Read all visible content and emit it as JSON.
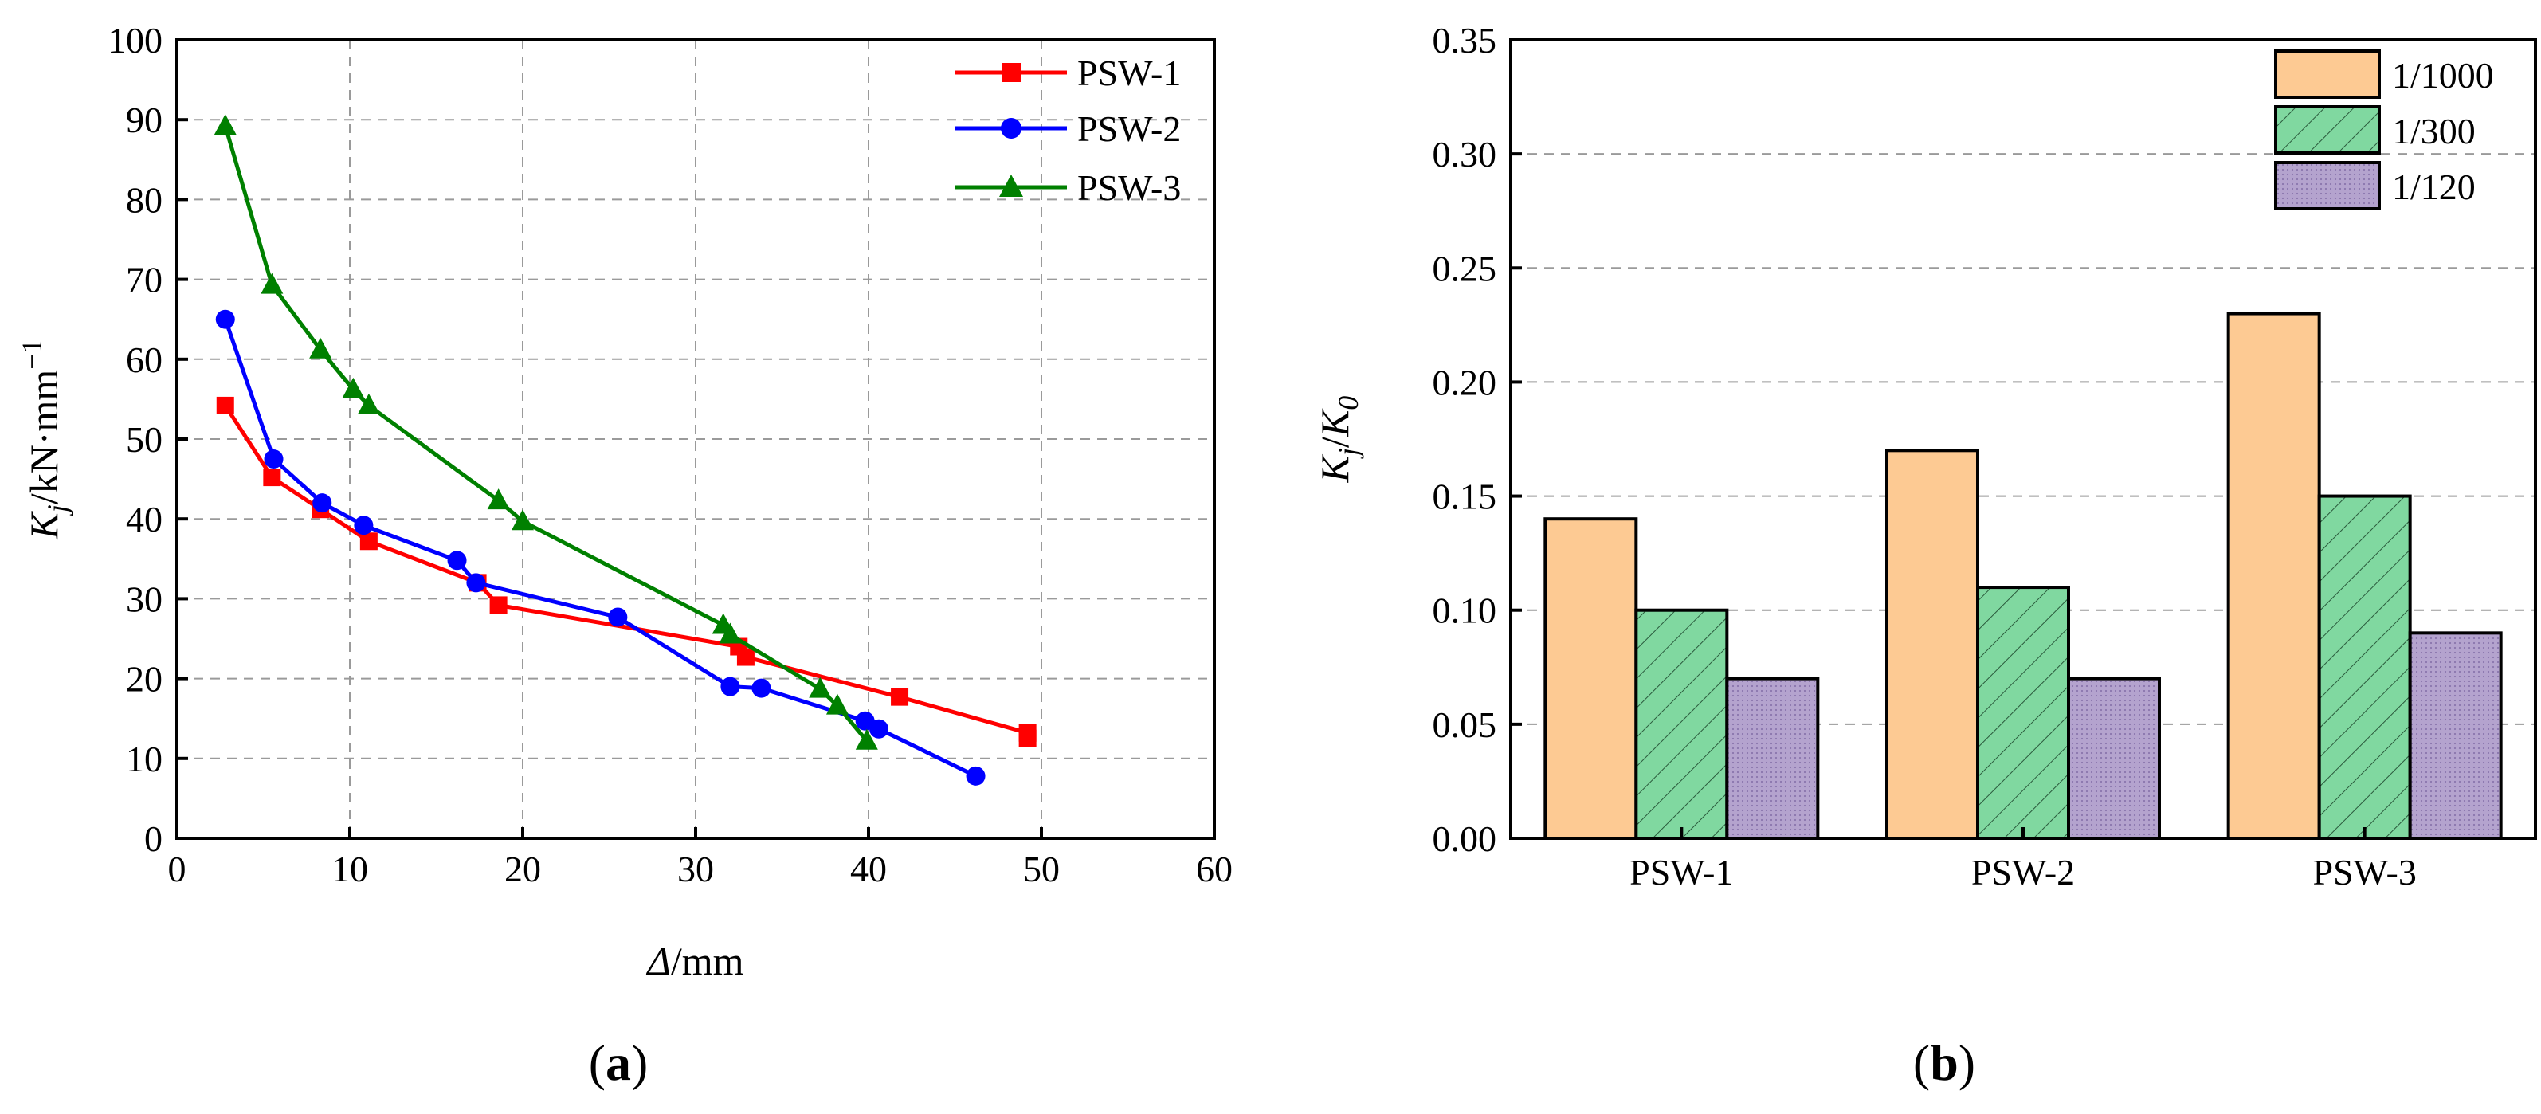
{
  "chart_data": [
    {
      "type": "line",
      "panel_label": "(a)",
      "xlabel": "Δ/mm",
      "xlabel_parts": {
        "symbol": "Δ",
        "unit": "/mm"
      },
      "ylabel": "Kj/kN·mm−1",
      "ylabel_parts": {
        "symbol": "K",
        "sub": "j",
        "unit": "/kN·mm",
        "sup": "−1"
      },
      "xlim": [
        0,
        60
      ],
      "ylim": [
        0,
        100
      ],
      "xticks": [
        0,
        10,
        20,
        30,
        40,
        50,
        60
      ],
      "yticks": [
        0,
        10,
        20,
        30,
        40,
        50,
        60,
        70,
        80,
        90,
        100
      ],
      "grid": true,
      "legend_position": "top-right",
      "series": [
        {
          "name": "PSW-1",
          "color": "#ff0000",
          "marker": "square",
          "x": [
            2.8,
            5.5,
            8.3,
            11.1,
            17.4,
            18.6,
            32.5,
            32.9,
            41.8,
            49.2,
            49.2
          ],
          "y": [
            54.2,
            45.2,
            41.2,
            37.2,
            32.0,
            29.2,
            24.0,
            22.7,
            17.7,
            13.2,
            12.5
          ]
        },
        {
          "name": "PSW-2",
          "color": "#0000ff",
          "marker": "circle",
          "x": [
            2.8,
            5.6,
            8.4,
            10.8,
            16.2,
            17.3,
            25.5,
            32.0,
            33.8,
            39.8,
            40.6,
            46.2
          ],
          "y": [
            65.0,
            47.5,
            42.0,
            39.2,
            34.8,
            32.0,
            27.7,
            19.0,
            18.8,
            14.7,
            13.7,
            7.8
          ]
        },
        {
          "name": "PSW-3",
          "color": "#008000",
          "marker": "triangle",
          "x": [
            2.8,
            5.5,
            8.3,
            10.2,
            11.1,
            18.6,
            20.0,
            31.6,
            32.0,
            37.2,
            38.2,
            39.9
          ],
          "y": [
            89.2,
            69.3,
            61.2,
            56.2,
            54.2,
            42.3,
            39.7,
            26.7,
            25.5,
            18.7,
            16.6,
            12.2
          ]
        }
      ]
    },
    {
      "type": "bar",
      "panel_label": "(b)",
      "xlabel": "",
      "ylabel": "Kj/K0",
      "ylabel_parts": {
        "symbol": "K",
        "sub": "j",
        "sep": "/",
        "symbol2": "K",
        "sub2": "0"
      },
      "categories": [
        "PSW-1",
        "PSW-2",
        "PSW-3"
      ],
      "ylim": [
        0,
        0.35
      ],
      "yticks": [
        "0.00",
        "0.05",
        "0.10",
        "0.15",
        "0.20",
        "0.25",
        "0.30",
        "0.35"
      ],
      "grid": true,
      "legend_position": "top-right",
      "series": [
        {
          "name": "1/1000",
          "color": "#fdca93",
          "pattern": "solid",
          "values": [
            0.14,
            0.17,
            0.23
          ]
        },
        {
          "name": "1/300",
          "color": "#80d8a0",
          "pattern": "diagonal-hatch",
          "values": [
            0.1,
            0.11,
            0.15
          ]
        },
        {
          "name": "1/120",
          "color": "#b4a3ce",
          "pattern": "dotted",
          "values": [
            0.07,
            0.07,
            0.09
          ]
        }
      ]
    }
  ]
}
